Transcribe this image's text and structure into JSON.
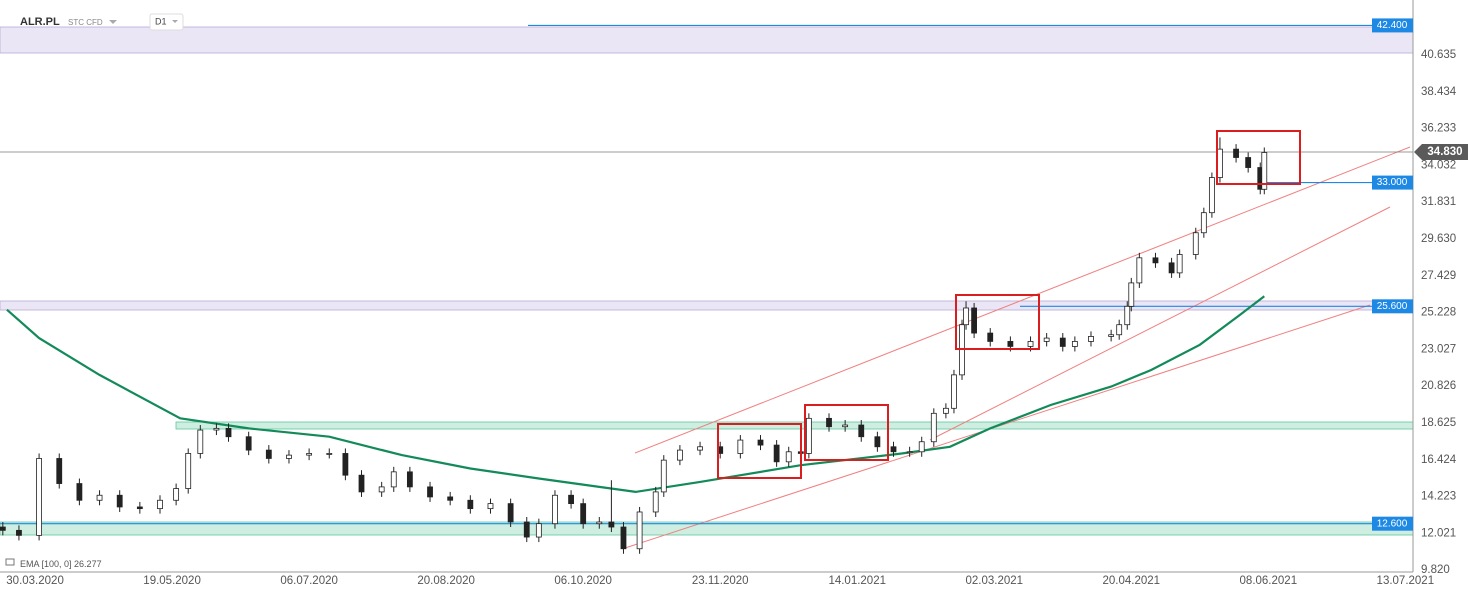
{
  "chart_data": {
    "type": "candlestick",
    "symbol": "ALR.PL",
    "instrument": "STC CFD",
    "interval": "D1",
    "x": [
      -8,
      -4,
      1,
      6,
      11,
      16,
      21,
      26,
      31,
      35,
      38,
      41,
      45,
      48,
      53,
      58,
      63,
      68,
      73,
      77,
      81,
      86,
      89,
      93,
      98,
      103,
      108,
      113,
      118,
      122,
      125,
      129,
      133,
      136,
      140,
      143,
      146,
      150,
      154,
      156,
      160,
      165,
      170,
      175,
      180,
      184,
      187,
      190,
      192,
      197,
      201,
      205,
      209,
      213,
      217,
      220,
      223,
      226,
      228,
      230,
      231,
      233,
      237,
      242,
      247,
      251,
      255,
      258,
      262,
      267,
      269,
      271,
      272,
      274,
      278,
      282,
      284,
      288,
      290,
      292,
      294,
      298,
      301,
      304,
      305
    ],
    "open": [
      12.4,
      12.2,
      11.9,
      16.5,
      15.0,
      14.0,
      14.3,
      13.6,
      13.5,
      14.0,
      14.7,
      16.8,
      18.2,
      18.3,
      17.8,
      17.0,
      16.5,
      16.7,
      16.8,
      16.8,
      15.5,
      14.5,
      14.8,
      15.7,
      14.8,
      14.2,
      14.0,
      13.5,
      13.8,
      12.7,
      11.8,
      12.6,
      14.3,
      13.8,
      12.6,
      12.7,
      12.4,
      11.1,
      13.3,
      14.5,
      16.4,
      17.0,
      17.2,
      16.8,
      17.6,
      17.3,
      16.3,
      16.9,
      16.8,
      18.9,
      18.4,
      18.5,
      17.8,
      17.2,
      16.9,
      16.9,
      17.5,
      19.2,
      19.5,
      21.5,
      24.5,
      25.5,
      24.0,
      23.5,
      23.2,
      23.5,
      23.7,
      23.2,
      23.5,
      23.8,
      23.9,
      24.5,
      25.6,
      27.0,
      28.5,
      28.2,
      27.6,
      28.7,
      30.0,
      31.2,
      33.3,
      35.0,
      34.5,
      33.9,
      32.6
    ],
    "high": [
      12.7,
      12.5,
      16.8,
      16.8,
      15.3,
      14.6,
      14.6,
      13.9,
      14.3,
      15.0,
      17.1,
      18.5,
      18.6,
      18.6,
      18.1,
      17.3,
      17.0,
      17.1,
      17.1,
      17.1,
      15.8,
      15.1,
      16.0,
      16.0,
      15.1,
      14.5,
      14.3,
      14.1,
      14.1,
      13.0,
      12.9,
      14.6,
      14.6,
      14.1,
      13.0,
      15.2,
      12.7,
      13.6,
      14.8,
      16.7,
      17.3,
      17.5,
      17.5,
      17.9,
      17.9,
      17.6,
      17.2,
      17.2,
      19.2,
      19.2,
      18.8,
      18.8,
      18.1,
      17.5,
      17.2,
      17.8,
      19.5,
      19.8,
      21.8,
      24.8,
      25.9,
      25.8,
      24.3,
      23.8,
      23.8,
      24.0,
      24.0,
      23.8,
      24.1,
      24.2,
      24.8,
      25.9,
      27.3,
      28.8,
      28.8,
      28.5,
      29.0,
      30.3,
      31.5,
      33.6,
      35.7,
      35.3,
      34.8,
      34.2,
      35.1
    ],
    "low": [
      11.9,
      11.6,
      11.6,
      14.7,
      13.7,
      13.7,
      13.3,
      13.2,
      13.2,
      13.7,
      14.4,
      16.5,
      17.9,
      17.5,
      16.7,
      16.2,
      16.2,
      16.4,
      16.5,
      15.2,
      14.2,
      14.2,
      14.5,
      14.5,
      13.9,
      13.7,
      13.2,
      13.2,
      12.4,
      11.5,
      11.5,
      12.3,
      13.5,
      12.3,
      12.3,
      12.1,
      10.8,
      10.8,
      13.0,
      14.2,
      16.1,
      16.7,
      16.5,
      16.5,
      17.0,
      16.0,
      16.0,
      16.5,
      16.5,
      18.1,
      18.1,
      17.5,
      16.9,
      16.6,
      16.6,
      16.6,
      17.2,
      18.9,
      19.2,
      21.2,
      24.2,
      23.7,
      23.2,
      22.9,
      22.9,
      23.2,
      22.9,
      22.9,
      23.2,
      23.5,
      23.6,
      24.2,
      25.3,
      26.7,
      27.9,
      27.3,
      27.3,
      28.4,
      29.7,
      30.9,
      33.0,
      34.2,
      33.6,
      32.3,
      32.3
    ],
    "close": [
      12.2,
      11.9,
      16.5,
      15.0,
      14.0,
      14.3,
      13.6,
      13.5,
      14.0,
      14.7,
      16.8,
      18.2,
      18.3,
      17.8,
      17.0,
      16.5,
      16.7,
      16.8,
      16.8,
      15.5,
      14.5,
      14.8,
      15.7,
      14.8,
      14.2,
      14.0,
      13.5,
      13.8,
      12.7,
      11.8,
      12.6,
      14.3,
      13.8,
      12.6,
      12.7,
      12.4,
      11.1,
      13.3,
      14.5,
      16.4,
      17.0,
      17.2,
      16.8,
      17.6,
      17.3,
      16.3,
      16.9,
      16.8,
      18.9,
      18.4,
      18.5,
      17.8,
      17.2,
      16.9,
      16.9,
      17.5,
      19.2,
      19.5,
      21.5,
      24.5,
      25.5,
      24.0,
      23.5,
      23.2,
      23.5,
      23.7,
      23.2,
      23.5,
      23.8,
      23.9,
      24.5,
      25.6,
      27.0,
      28.5,
      28.2,
      27.6,
      28.7,
      30.0,
      31.2,
      33.3,
      35.0,
      34.5,
      33.9,
      32.6,
      34.8
    ],
    "up_color": "#ffffff",
    "down_color": "#222222",
    "ema": {
      "name": "EMA [100, 0]",
      "last": 26.277,
      "color": "#138a5a",
      "x": [
        -7,
        1,
        16,
        36,
        53,
        73,
        91,
        108,
        125,
        140,
        149,
        165,
        190,
        215,
        227,
        237,
        252,
        267,
        277,
        289,
        299,
        305
      ],
      "values": [
        25.4,
        23.7,
        21.5,
        18.9,
        18.3,
        17.8,
        16.7,
        15.9,
        15.3,
        14.8,
        14.5,
        15.1,
        16.1,
        16.8,
        17.2,
        18.3,
        19.7,
        20.8,
        21.8,
        23.3,
        25.1,
        26.2
      ]
    },
    "levels": [
      {
        "value": 42.4,
        "label": "42.400",
        "color": "#1e88e5"
      },
      {
        "value": 33,
        "label": "33.000",
        "color": "#1e88e5"
      },
      {
        "value": 25.6,
        "label": "25.600",
        "color": "#1e88e5"
      },
      {
        "value": 12.6,
        "label": "12.600",
        "color": "#1e88e5"
      }
    ],
    "last_price": {
      "value": 34.83,
      "label": "34.830",
      "color": "#5a5a5a"
    },
    "xlim": [
      -8.7,
      341.9
    ],
    "ylim": [
      9.71,
      43.92
    ],
    "xticks": [
      {
        "value": 0,
        "label": "30.03.2020"
      },
      {
        "value": 34,
        "label": "19.05.2020"
      },
      {
        "value": 68,
        "label": "06.07.2020"
      },
      {
        "value": 102,
        "label": "20.08.2020"
      },
      {
        "value": 136,
        "label": "06.10.2020"
      },
      {
        "value": 170,
        "label": "23.11.2020"
      },
      {
        "value": 204,
        "label": "14.01.2021"
      },
      {
        "value": 238,
        "label": "02.03.2021"
      },
      {
        "value": 272,
        "label": "20.04.2021"
      },
      {
        "value": 306,
        "label": "08.06.2021"
      },
      {
        "value": 340,
        "label": "13.07.2021"
      }
    ],
    "yticks": [
      {
        "value": 9.82,
        "label": "9.820"
      },
      12.021,
      14.223,
      16.424,
      18.625,
      20.826,
      23.027,
      25.228,
      27.429,
      {
        "value": 29.63,
        "label": "29.630"
      },
      31.831,
      34.032,
      36.233,
      38.434,
      40.635
    ]
  }
}
